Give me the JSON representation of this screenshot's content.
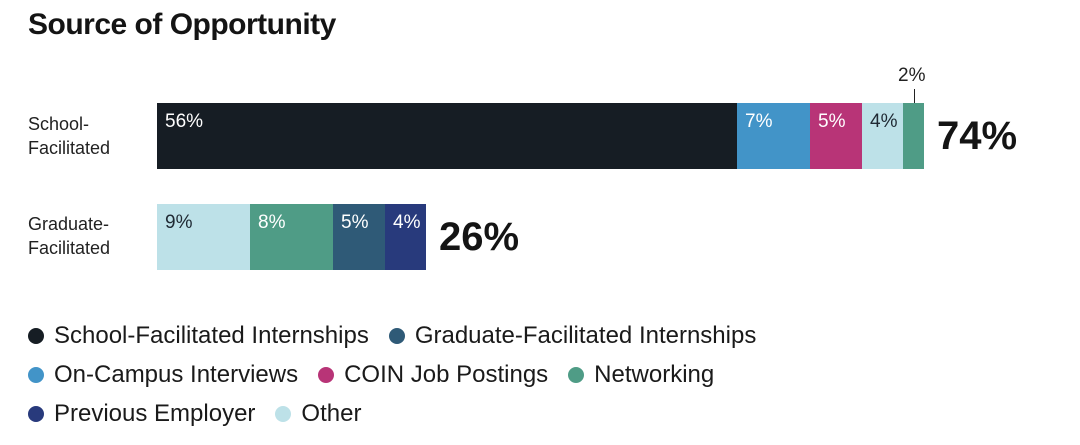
{
  "chart_data": {
    "type": "bar",
    "orientation": "horizontal",
    "stacked": true,
    "title": "Source of Opportunity",
    "categories": [
      "School-Facilitated",
      "Graduate-Facilitated"
    ],
    "row_labels": [
      [
        "School-",
        "Facilitated"
      ],
      [
        "Graduate-",
        "Facilitated"
      ]
    ],
    "totals": [
      "74%",
      "26%"
    ],
    "rows": [
      {
        "category": "School-Facilitated",
        "segments": [
          {
            "series": "School-Facilitated Internships",
            "value": 56,
            "label": "56%",
            "color": "#161d24",
            "label_color": "#ffffff"
          },
          {
            "series": "On-Campus Interviews",
            "value": 7,
            "label": "7%",
            "color": "#4294c8",
            "label_color": "#ffffff"
          },
          {
            "series": "COIN Job Postings",
            "value": 5,
            "label": "5%",
            "color": "#b83477",
            "label_color": "#ffffff"
          },
          {
            "series": "Other",
            "value": 4,
            "label": "4%",
            "color": "#bde1e8",
            "label_color": "#1f2933"
          },
          {
            "series": "Networking",
            "value": 2,
            "label": "2%",
            "color": "#4f9c86",
            "label_color": "#1f2933",
            "outside": true
          }
        ]
      },
      {
        "category": "Graduate-Facilitated",
        "segments": [
          {
            "series": "Other",
            "value": 9,
            "label": "9%",
            "color": "#bde1e8",
            "label_color": "#1f2933"
          },
          {
            "series": "Networking",
            "value": 8,
            "label": "8%",
            "color": "#4f9c86",
            "label_color": "#ffffff"
          },
          {
            "series": "Graduate-Facilitated Internships",
            "value": 5,
            "label": "5%",
            "color": "#2f5a77",
            "label_color": "#ffffff"
          },
          {
            "series": "Previous Employer",
            "value": 4,
            "label": "4%",
            "color": "#283a7c",
            "label_color": "#ffffff"
          }
        ]
      }
    ],
    "xlim": [
      0,
      74
    ],
    "grid": false,
    "legend_position": "bottom",
    "legend": [
      [
        {
          "name": "School-Facilitated Internships",
          "color": "#161d24"
        },
        {
          "name": "Graduate-Facilitated Internships",
          "color": "#2f5a77"
        }
      ],
      [
        {
          "name": "On-Campus Interviews",
          "color": "#4294c8"
        },
        {
          "name": "COIN Job Postings",
          "color": "#b83477"
        },
        {
          "name": "Networking",
          "color": "#4f9c86"
        }
      ],
      [
        {
          "name": "Previous Employer",
          "color": "#283a7c"
        },
        {
          "name": "Other",
          "color": "#bde1e8"
        }
      ]
    ]
  }
}
